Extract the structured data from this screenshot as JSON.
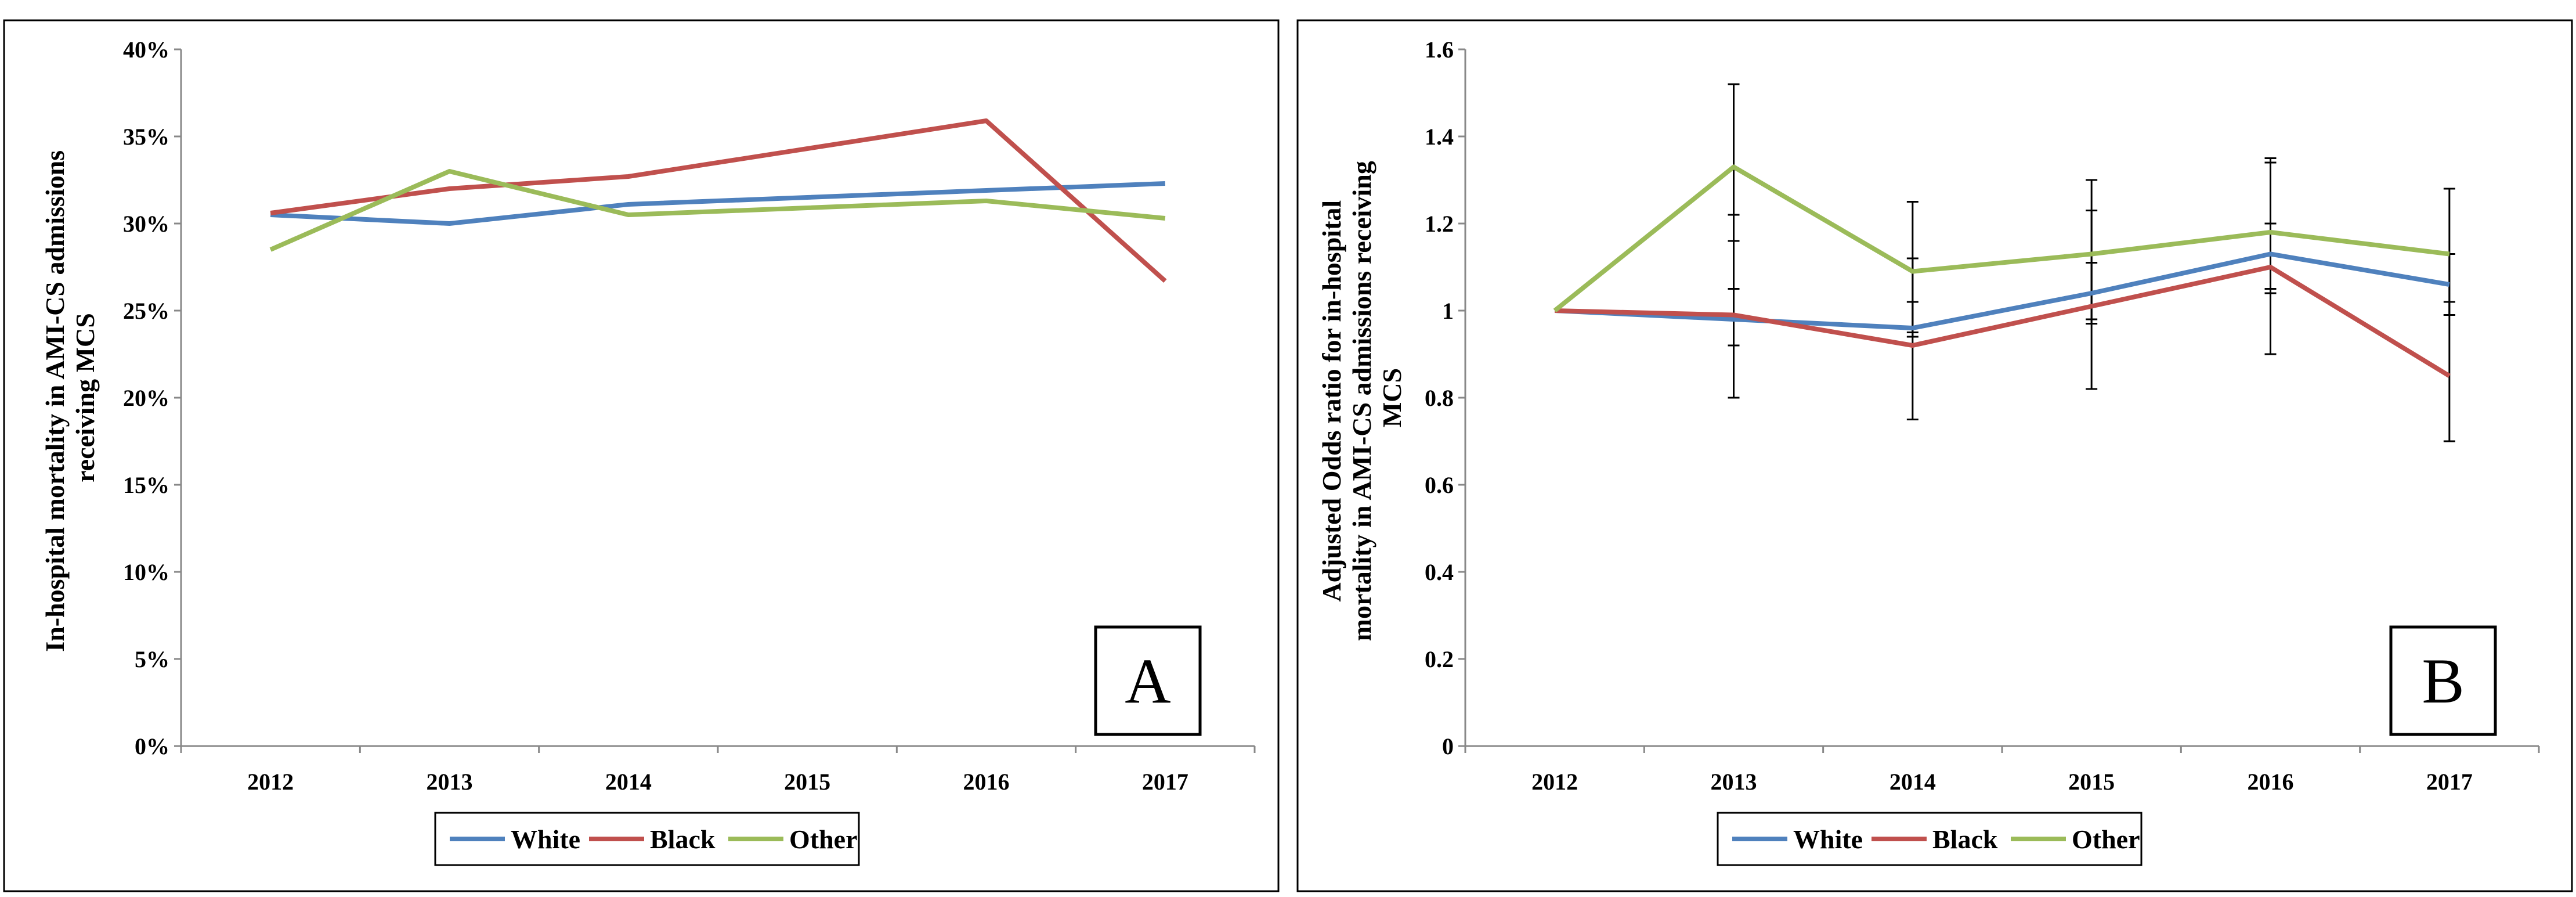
{
  "chart_data": [
    {
      "panel": "A",
      "type": "line",
      "title": "",
      "ylabel": "In-hospital mortality in AMI-CS admissions receiving MCS",
      "ylabel_lines": [
        "In-hospital mortality in AMI-CS admissions",
        "receiving MCS"
      ],
      "xlabel": "",
      "categories": [
        "2012",
        "2013",
        "2014",
        "2015",
        "2016",
        "2017"
      ],
      "ylim": [
        0,
        40
      ],
      "yticks": [
        0,
        5,
        10,
        15,
        20,
        25,
        30,
        35,
        40
      ],
      "ytick_labels": [
        "0%",
        "5%",
        "10%",
        "15%",
        "20%",
        "25%",
        "30%",
        "35%",
        "40%"
      ],
      "grid": false,
      "legend_position": "bottom",
      "panel_label": "A",
      "series": [
        {
          "name": "White",
          "color": "#4f81bd",
          "values": [
            30.5,
            30.0,
            31.1,
            31.5,
            31.9,
            32.3
          ]
        },
        {
          "name": "Black",
          "color": "#c0504d",
          "values": [
            30.6,
            32.0,
            32.7,
            34.3,
            35.9,
            26.7
          ]
        },
        {
          "name": "Other",
          "color": "#9bbb59",
          "values": [
            28.5,
            33.0,
            30.5,
            30.9,
            31.3,
            30.3
          ]
        }
      ]
    },
    {
      "panel": "B",
      "type": "line",
      "title": "",
      "ylabel": "Adjusted Odds ratio for in-hospital mortality in AMI-CS admissions receiving MCS",
      "ylabel_lines": [
        "Adjusted Odds ratio for in-hospital",
        "mortality in AMI-CS admissions receiving",
        "MCS"
      ],
      "xlabel": "",
      "categories": [
        "2012",
        "2013",
        "2014",
        "2015",
        "2016",
        "2017"
      ],
      "ylim": [
        0,
        1.6
      ],
      "yticks": [
        0,
        0.2,
        0.4,
        0.6,
        0.8,
        1,
        1.2,
        1.4,
        1.6
      ],
      "ytick_labels": [
        "0",
        "0.2",
        "0.4",
        "0.6",
        "0.8",
        "1",
        "1.2",
        "1.4",
        "1.6"
      ],
      "grid": false,
      "legend_position": "bottom",
      "panel_label": "B",
      "series": [
        {
          "name": "White",
          "color": "#4f81bd",
          "values": [
            1.0,
            0.98,
            0.96,
            1.04,
            1.13,
            1.06
          ],
          "ci_low": [
            null,
            0.92,
            0.94,
            0.97,
            1.05,
            0.99
          ],
          "ci_high": [
            null,
            1.05,
            1.02,
            1.11,
            1.2,
            1.13
          ]
        },
        {
          "name": "Black",
          "color": "#c0504d",
          "values": [
            1.0,
            0.99,
            0.92,
            1.01,
            1.1,
            0.85
          ],
          "ci_low": [
            null,
            0.8,
            0.75,
            0.82,
            0.9,
            0.7
          ],
          "ci_high": [
            null,
            1.22,
            1.12,
            1.23,
            1.34,
            1.02
          ]
        },
        {
          "name": "Other",
          "color": "#9bbb59",
          "values": [
            1.0,
            1.33,
            1.09,
            1.13,
            1.18,
            1.13
          ],
          "ci_low": [
            null,
            1.16,
            0.95,
            0.98,
            1.04,
            0.99
          ],
          "ci_high": [
            null,
            1.52,
            1.25,
            1.3,
            1.35,
            1.28
          ]
        }
      ]
    }
  ]
}
